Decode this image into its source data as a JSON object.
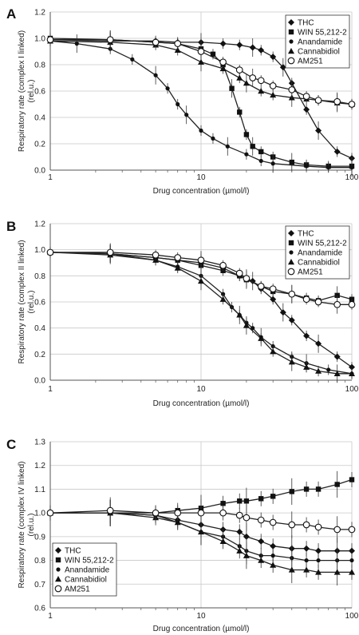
{
  "chart_data": [
    {
      "panel": "A",
      "type": "scatter",
      "xlabel": "Drug concentration (µmol/l)",
      "ylabel_line1": "Respiratory rate (complex I linked)",
      "ylabel_line2": "(rel.u.)",
      "xscale": "log",
      "xlim": [
        1,
        100
      ],
      "ylim": [
        0,
        1.2
      ],
      "xticks": [
        "1",
        "10",
        "100"
      ],
      "yticks": [
        "0.0",
        "0.2",
        "0.4",
        "0.6",
        "0.8",
        "1.0",
        "1.2"
      ],
      "legend_position": "top-right",
      "series": [
        {
          "name": "THC",
          "marker": "diamond",
          "x": [
            1,
            2.5,
            5,
            7,
            10,
            14,
            18,
            22,
            25,
            30,
            35,
            40,
            50,
            60,
            80,
            100
          ],
          "y": [
            0.99,
            0.98,
            0.98,
            0.97,
            0.97,
            0.96,
            0.95,
            0.93,
            0.91,
            0.86,
            0.78,
            0.66,
            0.46,
            0.3,
            0.14,
            0.09
          ]
        },
        {
          "name": "WIN 55,212-2",
          "marker": "square",
          "x": [
            1,
            2.5,
            5,
            7,
            10,
            12,
            14,
            16,
            18,
            20,
            22,
            25,
            30,
            40,
            50,
            70,
            100
          ],
          "y": [
            1.0,
            0.99,
            0.97,
            0.96,
            0.92,
            0.88,
            0.8,
            0.62,
            0.44,
            0.27,
            0.18,
            0.14,
            0.1,
            0.06,
            0.04,
            0.03,
            0.03
          ]
        },
        {
          "name": "Anandamide",
          "marker": "dot",
          "x": [
            1,
            1.5,
            2.5,
            3.5,
            5,
            6,
            7,
            8,
            10,
            12,
            15,
            20,
            25,
            30,
            50,
            70,
            100
          ],
          "y": [
            0.98,
            0.96,
            0.92,
            0.84,
            0.72,
            0.62,
            0.5,
            0.42,
            0.3,
            0.24,
            0.18,
            0.12,
            0.07,
            0.05,
            0.03,
            0.02,
            0.02
          ]
        },
        {
          "name": "Cannabidiol",
          "marker": "triangle",
          "x": [
            1,
            2.5,
            5,
            7,
            10,
            14,
            18,
            20,
            25,
            30,
            40,
            50,
            60,
            80,
            100
          ],
          "y": [
            0.98,
            0.97,
            0.95,
            0.91,
            0.82,
            0.77,
            0.7,
            0.66,
            0.6,
            0.57,
            0.55,
            0.54,
            0.53,
            0.51,
            0.5
          ]
        },
        {
          "name": "AM251",
          "marker": "open-circle",
          "x": [
            1,
            2.5,
            5,
            7,
            10,
            14,
            18,
            22,
            25,
            30,
            40,
            50,
            60,
            80,
            100
          ],
          "y": [
            0.99,
            0.99,
            0.97,
            0.96,
            0.9,
            0.82,
            0.76,
            0.7,
            0.68,
            0.64,
            0.61,
            0.56,
            0.53,
            0.52,
            0.5
          ]
        }
      ]
    },
    {
      "panel": "B",
      "type": "scatter",
      "xlabel": "Drug concentration (µmol/l)",
      "ylabel_line1": "Respiratory rate (complex II linked)",
      "ylabel_line2": "(rel.u.)",
      "xscale": "log",
      "xlim": [
        1,
        100
      ],
      "ylim": [
        0,
        1.2
      ],
      "xticks": [
        "1",
        "10",
        "100"
      ],
      "yticks": [
        "0.0",
        "0.2",
        "0.4",
        "0.6",
        "0.8",
        "1.0",
        "1.2"
      ],
      "legend_position": "top-right",
      "series": [
        {
          "name": "THC",
          "marker": "diamond",
          "x": [
            1,
            2.5,
            5,
            7,
            10,
            14,
            18,
            22,
            25,
            30,
            35,
            40,
            50,
            60,
            80,
            100
          ],
          "y": [
            0.98,
            0.97,
            0.94,
            0.92,
            0.9,
            0.86,
            0.8,
            0.76,
            0.7,
            0.62,
            0.52,
            0.46,
            0.34,
            0.28,
            0.18,
            0.1
          ]
        },
        {
          "name": "WIN 55,212-2",
          "marker": "square",
          "x": [
            1,
            2.5,
            5,
            7,
            10,
            14,
            18,
            20,
            25,
            30,
            40,
            50,
            60,
            80,
            100
          ],
          "y": [
            0.98,
            0.97,
            0.94,
            0.92,
            0.88,
            0.84,
            0.8,
            0.77,
            0.72,
            0.68,
            0.66,
            0.63,
            0.61,
            0.65,
            0.62
          ]
        },
        {
          "name": "Anandamide",
          "marker": "dot",
          "x": [
            1,
            2.5,
            5,
            7,
            10,
            14,
            16,
            18,
            20,
            22,
            25,
            30,
            40,
            50,
            70,
            100
          ],
          "y": [
            0.98,
            0.97,
            0.92,
            0.87,
            0.8,
            0.66,
            0.56,
            0.5,
            0.44,
            0.4,
            0.33,
            0.26,
            0.18,
            0.13,
            0.08,
            0.05
          ]
        },
        {
          "name": "Cannabidiol",
          "marker": "triangle",
          "x": [
            1,
            2.5,
            5,
            7,
            10,
            14,
            18,
            20,
            25,
            30,
            40,
            50,
            60,
            80,
            100
          ],
          "y": [
            0.98,
            0.96,
            0.92,
            0.86,
            0.76,
            0.62,
            0.5,
            0.42,
            0.32,
            0.22,
            0.14,
            0.1,
            0.07,
            0.05,
            0.05
          ]
        },
        {
          "name": "AM251",
          "marker": "open-circle",
          "x": [
            1,
            2.5,
            5,
            7,
            10,
            14,
            18,
            20,
            25,
            30,
            40,
            50,
            60,
            80,
            100
          ],
          "y": [
            0.98,
            0.98,
            0.96,
            0.94,
            0.92,
            0.88,
            0.82,
            0.78,
            0.72,
            0.7,
            0.66,
            0.62,
            0.6,
            0.58,
            0.58
          ]
        }
      ]
    },
    {
      "panel": "C",
      "type": "scatter",
      "xlabel": "Drug concentration (µmol/l)",
      "ylabel_line1": "Respiratory rate (complex IV linked)",
      "ylabel_line2": "(rel.u.)",
      "xscale": "log",
      "xlim": [
        1,
        100
      ],
      "ylim": [
        0.6,
        1.3
      ],
      "xticks": [
        "1",
        "10",
        "100"
      ],
      "yticks": [
        "0.6",
        "0.7",
        "0.8",
        "0.9",
        "1.0",
        "1.1",
        "1.2",
        "1.3"
      ],
      "legend_position": "bottom-left",
      "series": [
        {
          "name": "THC",
          "marker": "diamond",
          "x": [
            1,
            2.5,
            5,
            7,
            10,
            14,
            18,
            20,
            25,
            30,
            40,
            50,
            60,
            80,
            100
          ],
          "y": [
            1.0,
            1.0,
            0.99,
            0.97,
            0.95,
            0.93,
            0.92,
            0.9,
            0.88,
            0.86,
            0.85,
            0.85,
            0.84,
            0.84,
            0.84
          ]
        },
        {
          "name": "WIN 55,212-2",
          "marker": "square",
          "x": [
            1,
            2.5,
            5,
            7,
            10,
            14,
            18,
            20,
            25,
            30,
            40,
            50,
            60,
            80,
            100
          ],
          "y": [
            1.0,
            1.0,
            1.0,
            1.01,
            1.02,
            1.04,
            1.05,
            1.05,
            1.06,
            1.07,
            1.09,
            1.1,
            1.1,
            1.12,
            1.14
          ]
        },
        {
          "name": "Anandamide",
          "marker": "dot",
          "x": [
            1,
            2.5,
            5,
            7,
            10,
            14,
            18,
            20,
            25,
            30,
            40,
            50,
            60,
            80,
            100
          ],
          "y": [
            1.0,
            1.0,
            0.99,
            0.96,
            0.92,
            0.9,
            0.86,
            0.84,
            0.82,
            0.82,
            0.81,
            0.8,
            0.8,
            0.8,
            0.8
          ]
        },
        {
          "name": "Cannabidiol",
          "marker": "triangle",
          "x": [
            1,
            2.5,
            5,
            7,
            10,
            14,
            18,
            20,
            25,
            30,
            40,
            50,
            60,
            80,
            100
          ],
          "y": [
            1.0,
            1.0,
            0.98,
            0.96,
            0.92,
            0.88,
            0.84,
            0.82,
            0.8,
            0.78,
            0.76,
            0.76,
            0.75,
            0.75,
            0.75
          ]
        },
        {
          "name": "AM251",
          "marker": "open-circle",
          "x": [
            1,
            2.5,
            5,
            7,
            10,
            14,
            18,
            20,
            25,
            30,
            40,
            50,
            60,
            80,
            100
          ],
          "y": [
            1.0,
            1.01,
            1.0,
            1.0,
            1.0,
            1.0,
            0.99,
            0.98,
            0.97,
            0.96,
            0.95,
            0.95,
            0.94,
            0.93,
            0.93
          ]
        }
      ]
    }
  ]
}
